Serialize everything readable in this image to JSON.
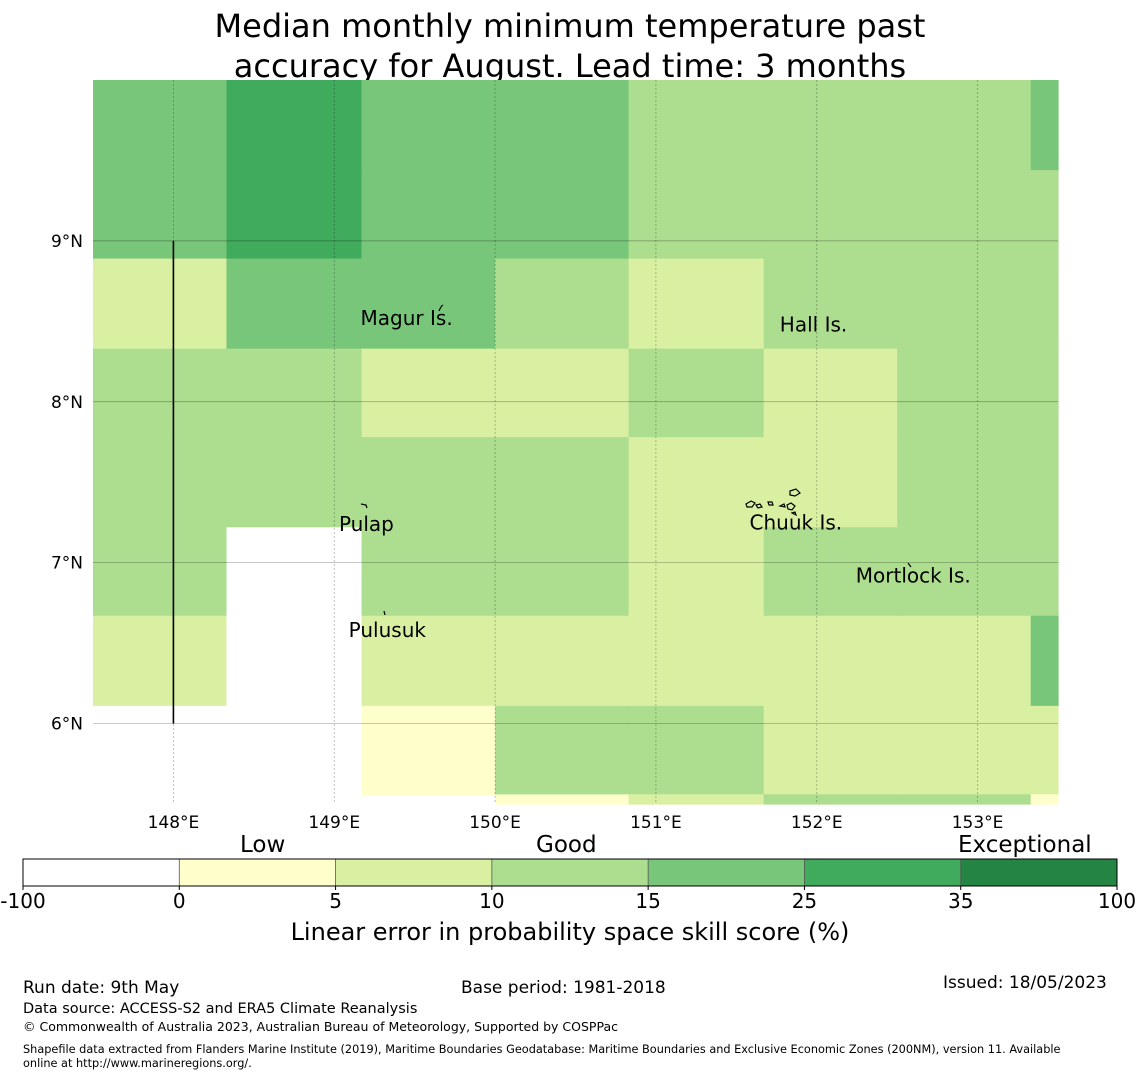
{
  "title": {
    "line1": "Median monthly minimum temperature past",
    "line2": "accuracy for August. Lead time: 3 months"
  },
  "map": {
    "lon_range": [
      147.5,
      153.5
    ],
    "lat_range": [
      5.5,
      10.0
    ],
    "lon_ticks": [
      {
        "value": 148,
        "label": "148°E"
      },
      {
        "value": 149,
        "label": "149°E"
      },
      {
        "value": 150,
        "label": "150°E"
      },
      {
        "value": 151,
        "label": "151°E"
      },
      {
        "value": 152,
        "label": "152°E"
      },
      {
        "value": 153,
        "label": "153°E"
      }
    ],
    "lat_ticks": [
      {
        "value": 9,
        "label": "9°N"
      },
      {
        "value": 8,
        "label": "8°N"
      },
      {
        "value": 7,
        "label": "7°N"
      },
      {
        "value": 6,
        "label": "6°N"
      }
    ],
    "gridlines": true,
    "places": [
      {
        "name": "Magur Is.",
        "lon": 149.45,
        "lat": 8.52
      },
      {
        "name": "Hall Is.",
        "lon": 151.98,
        "lat": 8.48
      },
      {
        "name": "Pulap",
        "lon": 149.2,
        "lat": 7.24
      },
      {
        "name": "Chuuk Is.",
        "lon": 151.87,
        "lat": 7.25
      },
      {
        "name": "Mortlock Is.",
        "lon": 152.6,
        "lat": 6.92
      },
      {
        "name": "Pulusuk",
        "lon": 149.33,
        "lat": 6.58
      }
    ],
    "boundary_line": {
      "lon": 148.0,
      "lat_from": 6.0,
      "lat_to": 9.0
    },
    "skill_grid": {
      "col_edges_lon": [
        147.5,
        148.33,
        149.17,
        150.0,
        150.83,
        151.67,
        152.5,
        153.33,
        153.5
      ],
      "rows": [
        {
          "lat_top": 10.0,
          "lat_bottom": 9.44,
          "cats": [
            4,
            5,
            4,
            4,
            3,
            3,
            3,
            4
          ]
        },
        {
          "lat_top": 9.44,
          "lat_bottom": 8.89,
          "cats": [
            4,
            5,
            4,
            4,
            3,
            3,
            3,
            3
          ]
        },
        {
          "lat_top": 8.89,
          "lat_bottom": 8.33,
          "cats": [
            2,
            4,
            4,
            3,
            2,
            3,
            3,
            3
          ]
        },
        {
          "lat_top": 8.33,
          "lat_bottom": 7.78,
          "cats": [
            3,
            3,
            2,
            2,
            3,
            2,
            3,
            3
          ]
        },
        {
          "lat_top": 7.78,
          "lat_bottom": 7.22,
          "cats": [
            3,
            3,
            3,
            3,
            2,
            2,
            3,
            3
          ]
        },
        {
          "lat_top": 7.22,
          "lat_bottom": 6.67,
          "cats": [
            3,
            0,
            3,
            3,
            2,
            3,
            3,
            3
          ]
        },
        {
          "lat_top": 6.67,
          "lat_bottom": 6.11,
          "cats": [
            2,
            0,
            2,
            2,
            2,
            2,
            2,
            4
          ]
        },
        {
          "lat_top": 6.11,
          "lat_bottom": 5.56,
          "cats": [
            0,
            0,
            1,
            3,
            3,
            2,
            2,
            2
          ]
        },
        {
          "lat_top": 5.56,
          "lat_bottom": 5.5,
          "cats": [
            0,
            0,
            -1,
            1,
            2,
            3,
            3,
            1
          ]
        }
      ]
    }
  },
  "colorbar": {
    "boundaries": [
      "-100",
      "0",
      "5",
      "10",
      "15",
      "25",
      "35",
      "100"
    ],
    "colors": [
      "#ffffff",
      "#ffffcc",
      "#d9f0a3",
      "#addd8e",
      "#78c679",
      "#41ab5d",
      "#238443"
    ],
    "category_labels": {
      "low": "Low",
      "good": "Good",
      "exceptional": "Exceptional"
    },
    "title": "Linear error in probability space skill score (%)"
  },
  "footer": {
    "run_date": "Run date: 9th May",
    "base_period": "Base period: 1981-2018",
    "issued": "Issued: 18/05/2023",
    "data_source": "Data source: ACCESS-S2 and ERA5 Climate Reanalysis",
    "copyright": "© Commonwealth of Australia 2023, Australian Bureau of Meteorology, Supported by COSPPac",
    "shapefile_line1": "Shapefile data extracted from Flanders Marine Institute (2019), Maritime Boundaries Geodatabase: Maritime Boundaries and Exclusive Economic Zones (200NM), version 11. Available",
    "shapefile_line2": "online at http://www.marineregions.org/."
  }
}
